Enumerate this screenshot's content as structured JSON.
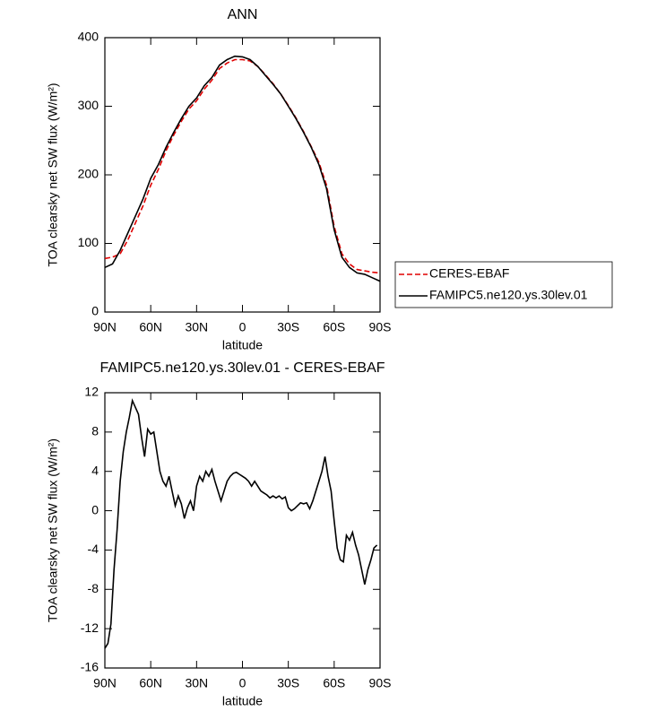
{
  "chart_data": [
    {
      "type": "line",
      "title": "ANN",
      "xlabel": "latitude",
      "ylabel": "TOA clearsky net SW flux (W/m²)",
      "x": [
        90,
        85,
        80,
        75,
        70,
        65,
        60,
        55,
        50,
        45,
        40,
        35,
        30,
        25,
        20,
        15,
        10,
        5,
        0,
        -5,
        -10,
        -15,
        -20,
        -25,
        -30,
        -35,
        -40,
        -45,
        -50,
        -55,
        -60,
        -65,
        -70,
        -75,
        -80,
        -85,
        -90
      ],
      "series": [
        {
          "name": "CERES-EBAF",
          "color": "#e00000",
          "dash": true,
          "values": [
            78,
            80,
            85,
            105,
            130,
            155,
            185,
            208,
            235,
            258,
            278,
            296,
            308,
            325,
            338,
            355,
            363,
            368,
            368,
            366,
            358,
            346,
            333,
            318,
            301,
            283,
            263,
            241,
            218,
            185,
            125,
            85,
            70,
            62,
            60,
            58,
            57
          ]
        },
        {
          "name": "FAMIPC5.ne120.ys.30lev.01",
          "color": "#000000",
          "dash": false,
          "values": [
            65,
            70,
            90,
            115,
            140,
            165,
            195,
            215,
            240,
            262,
            282,
            300,
            312,
            330,
            342,
            360,
            368,
            373,
            372,
            368,
            358,
            345,
            332,
            318,
            300,
            282,
            262,
            240,
            215,
            180,
            120,
            80,
            65,
            57,
            55,
            50,
            45
          ]
        }
      ],
      "xlim": [
        90,
        -90
      ],
      "xticks": [
        {
          "value": 90,
          "label": "90N"
        },
        {
          "value": 60,
          "label": "60N"
        },
        {
          "value": 30,
          "label": "30N"
        },
        0,
        {
          "value": -30,
          "label": "30S"
        },
        {
          "value": -60,
          "label": "60S"
        },
        {
          "value": -90,
          "label": "90S"
        }
      ],
      "ylim": [
        0,
        400
      ],
      "yticks": [
        0,
        100,
        200,
        300,
        400
      ],
      "legend": "right"
    },
    {
      "type": "line",
      "title": "FAMIPC5.ne120.ys.30lev.01 - CERES-EBAF",
      "xlabel": "latitude",
      "ylabel": "TOA clearsky net SW flux (W/m²)",
      "x": [
        90,
        88,
        86,
        84,
        82,
        80,
        78,
        76,
        74,
        72,
        70,
        68,
        66,
        64,
        62,
        60,
        58,
        56,
        54,
        52,
        50,
        48,
        46,
        44,
        42,
        40,
        38,
        36,
        34,
        32,
        30,
        28,
        26,
        24,
        22,
        20,
        18,
        16,
        14,
        12,
        10,
        8,
        6,
        4,
        2,
        0,
        -2,
        -4,
        -6,
        -8,
        -10,
        -12,
        -14,
        -16,
        -18,
        -20,
        -22,
        -24,
        -26,
        -28,
        -30,
        -32,
        -34,
        -36,
        -38,
        -40,
        -42,
        -44,
        -46,
        -48,
        -50,
        -52,
        -54,
        -56,
        -58,
        -60,
        -62,
        -64,
        -66,
        -68,
        -70,
        -72,
        -74,
        -76,
        -78,
        -80,
        -82,
        -84,
        -86,
        -88
      ],
      "values": [
        -14,
        -13.5,
        -11.5,
        -6,
        -2,
        3,
        6,
        8,
        9.5,
        11.2,
        10.5,
        9.8,
        7.5,
        5.5,
        8.3,
        7.8,
        8,
        6,
        4,
        3,
        2.5,
        3.5,
        2,
        0.5,
        1.5,
        0.7,
        -0.8,
        0.3,
        1,
        0,
        2.5,
        3.5,
        3,
        4,
        3.5,
        4.2,
        3,
        2,
        1,
        2,
        3,
        3.5,
        3.8,
        3.9,
        3.7,
        3.5,
        3.3,
        3,
        2.5,
        3,
        2.5,
        2,
        1.8,
        1.6,
        1.3,
        1.5,
        1.3,
        1.5,
        1.2,
        1.4,
        0.3,
        0,
        0.2,
        0.5,
        0.8,
        0.7,
        0.8,
        0.2,
        1,
        2,
        3,
        4,
        5.5,
        3.5,
        2,
        -1,
        -3.8,
        -5,
        -5.2,
        -2.5,
        -3,
        -2.2,
        -3.5,
        -4.5,
        -6,
        -7.5,
        -6,
        -5,
        -3.8,
        -3.5
      ],
      "color": "#000000",
      "xlim": [
        90,
        -90
      ],
      "xticks": [
        {
          "value": 90,
          "label": "90N"
        },
        {
          "value": 60,
          "label": "60N"
        },
        {
          "value": 30,
          "label": "30N"
        },
        0,
        {
          "value": -30,
          "label": "30S"
        },
        {
          "value": -60,
          "label": "60S"
        },
        {
          "value": -90,
          "label": "90S"
        }
      ],
      "ylim": [
        -16,
        12
      ],
      "yticks": [
        -16,
        -12,
        -8,
        -4,
        0,
        4,
        8,
        12
      ]
    }
  ]
}
